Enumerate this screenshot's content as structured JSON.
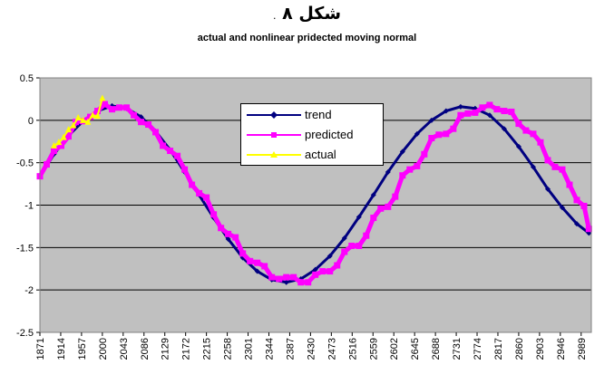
{
  "header": {
    "title": "شکل ۸",
    "title_mark": ".",
    "subtitle": "actual and nonlinear  pridected moving normal"
  },
  "colors": {
    "plot_bg": "#c0c0c0",
    "trend": "#000080",
    "predicted": "#ff00ff",
    "actual": "#ffff00",
    "grid": "#000000"
  },
  "chart_data": {
    "type": "line",
    "title": "شکل ۸",
    "subtitle": "actual and nonlinear  pridected moving normal",
    "xlabel": "",
    "ylabel": "",
    "xlim": [
      1871,
      3010
    ],
    "ylim": [
      -2.5,
      0.5
    ],
    "yticks": [
      -2.5,
      -2,
      -1.5,
      -1,
      -0.5,
      0,
      0.5
    ],
    "ytick_labels": [
      "-2.5",
      "-2",
      "-1.5",
      "-1",
      "-0.5",
      "0",
      "0.5"
    ],
    "xticks": [
      1871,
      1914,
      1957,
      2000,
      2043,
      2086,
      2129,
      2172,
      2215,
      2258,
      2301,
      2344,
      2387,
      2430,
      2473,
      2516,
      2559,
      2602,
      2645,
      2688,
      2731,
      2774,
      2817,
      2860,
      2903,
      2946,
      2989
    ],
    "xtick_labels": [
      "1871",
      "1914",
      "1957",
      "2000",
      "2043",
      "2086",
      "2129",
      "2172",
      "2215",
      "2258",
      "2301",
      "2344",
      "2387",
      "2430",
      "2473",
      "2516",
      "2559",
      "2602",
      "2645",
      "2688",
      "2731",
      "2774",
      "2817",
      "2860",
      "2903",
      "2946",
      "2989"
    ],
    "grid": "horizontal",
    "legend_position": "upper-center",
    "series": [
      {
        "name": "trend",
        "color": "#000080",
        "marker": "diamond",
        "x": [
          1871,
          1900,
          1930,
          1960,
          1990,
          2020,
          2050,
          2080,
          2110,
          2140,
          2170,
          2200,
          2230,
          2260,
          2290,
          2320,
          2350,
          2380,
          2410,
          2440,
          2470,
          2500,
          2530,
          2560,
          2590,
          2620,
          2650,
          2680,
          2710,
          2740,
          2770,
          2800,
          2830,
          2860,
          2890,
          2920,
          2950,
          2980,
          3005
        ],
        "y": [
          -0.66,
          -0.4,
          -0.18,
          -0.01,
          0.11,
          0.17,
          0.14,
          0.04,
          -0.13,
          -0.35,
          -0.61,
          -0.88,
          -1.15,
          -1.4,
          -1.62,
          -1.78,
          -1.88,
          -1.91,
          -1.87,
          -1.76,
          -1.6,
          -1.39,
          -1.14,
          -0.88,
          -0.61,
          -0.37,
          -0.16,
          0.0,
          0.11,
          0.16,
          0.14,
          0.06,
          -0.1,
          -0.31,
          -0.55,
          -0.81,
          -1.03,
          -1.22,
          -1.33
        ]
      },
      {
        "name": "predicted",
        "color": "#ff00ff",
        "marker": "square",
        "x": [
          1871,
          1885,
          1900,
          1915,
          1930,
          1945,
          1960,
          1975,
          1990,
          2005,
          2020,
          2035,
          2050,
          2065,
          2080,
          2095,
          2110,
          2125,
          2140,
          2155,
          2170,
          2185,
          2200,
          2215,
          2230,
          2245,
          2260,
          2275,
          2290,
          2305,
          2320,
          2335,
          2350,
          2365,
          2380,
          2395,
          2410,
          2425,
          2440,
          2455,
          2470,
          2485,
          2500,
          2515,
          2530,
          2545,
          2560,
          2575,
          2590,
          2605,
          2620,
          2635,
          2650,
          2665,
          2680,
          2695,
          2710,
          2725,
          2740,
          2755,
          2770,
          2785,
          2800,
          2815,
          2830,
          2845,
          2860,
          2875,
          2890,
          2905,
          2920,
          2935,
          2950,
          2965,
          2980,
          2995,
          3005
        ],
        "y": [
          -0.66,
          -0.52,
          -0.36,
          -0.3,
          -0.19,
          -0.02,
          -0.01,
          0.04,
          0.11,
          0.19,
          0.13,
          0.15,
          0.15,
          0.06,
          -0.02,
          -0.05,
          -0.14,
          -0.3,
          -0.36,
          -0.42,
          -0.58,
          -0.76,
          -0.86,
          -0.91,
          -1.11,
          -1.27,
          -1.34,
          -1.38,
          -1.57,
          -1.66,
          -1.68,
          -1.72,
          -1.85,
          -1.87,
          -1.85,
          -1.85,
          -1.91,
          -1.91,
          -1.82,
          -1.78,
          -1.78,
          -1.71,
          -1.55,
          -1.48,
          -1.48,
          -1.36,
          -1.15,
          -1.04,
          -1.02,
          -0.9,
          -0.65,
          -0.58,
          -0.54,
          -0.4,
          -0.21,
          -0.17,
          -0.16,
          -0.1,
          0.06,
          0.08,
          0.09,
          0.15,
          0.18,
          0.13,
          0.11,
          0.1,
          -0.04,
          -0.12,
          -0.16,
          -0.26,
          -0.47,
          -0.55,
          -0.58,
          -0.76,
          -0.94,
          -1.01,
          -1.28
        ]
      },
      {
        "name": "actual",
        "color": "#ffff00",
        "marker": "triangle",
        "x": [
          1900,
          1910,
          1920,
          1930,
          1940,
          1950,
          1960,
          1970,
          1980,
          1990,
          2000
        ],
        "y": [
          -0.3,
          -0.26,
          -0.2,
          -0.11,
          -0.06,
          0.03,
          0.0,
          -0.02,
          0.06,
          0.05,
          0.26
        ]
      }
    ]
  }
}
